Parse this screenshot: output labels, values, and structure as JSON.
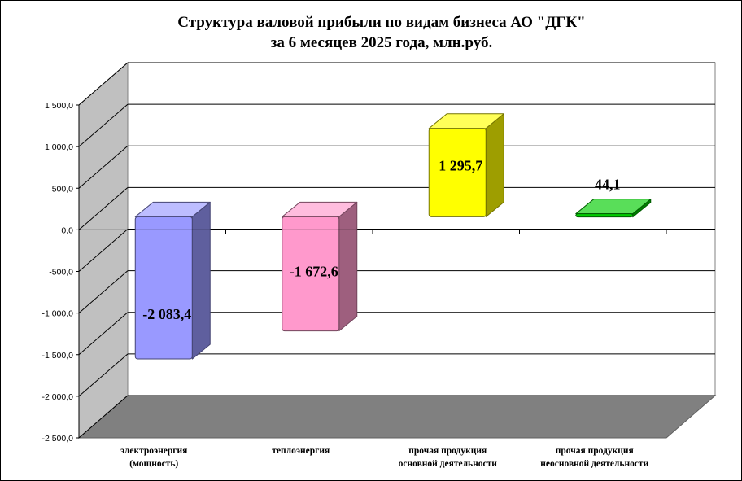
{
  "chart_data": {
    "type": "bar",
    "title": [
      "Структура  валовой прибыли  по видам бизнеса АО \"ДГК\"",
      "за 6 месяцев 2025 года, млн.руб."
    ],
    "categories": [
      [
        "электроэнергия",
        "(мощность)"
      ],
      [
        "теплоэнергия"
      ],
      [
        "прочая  продукция",
        "основной  деятельности"
      ],
      [
        "прочая  продукция",
        "неосновной  деятельности"
      ]
    ],
    "values": [
      -2083.4,
      -1672.6,
      1295.7,
      44.1
    ],
    "value_labels": [
      "-2 083,4",
      "-1 672,6",
      "1 295,7",
      "44,1"
    ],
    "colors": [
      "#9999ff",
      "#ff99cc",
      "#ffff00",
      "#00cc00"
    ],
    "ylim": [
      -2500,
      1500
    ],
    "yticks": [
      1500,
      1000,
      500,
      0,
      -500,
      -1000,
      -1500,
      -2000,
      -2500
    ],
    "ytick_labels": [
      "1 500,0",
      "1 000,0",
      "500,0",
      "0,0",
      "-500,0",
      "-1 000,0",
      "-1 500,0",
      "-2 000,0",
      "-2 500,0"
    ],
    "grid": true,
    "legend": false,
    "style": "3d-column"
  }
}
